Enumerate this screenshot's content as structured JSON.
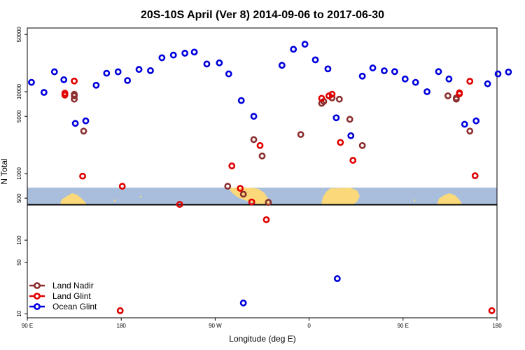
{
  "chart_data": {
    "type": "scatter",
    "title": "20S-10S April (Ver 8)   2014-09-06 to 2017-06-30",
    "xlabel": "Longitude (deg E)",
    "ylabel": "N Total",
    "x_ticks": [
      {
        "value": 90,
        "label": "90 E"
      },
      {
        "value": 180,
        "label": "180"
      },
      {
        "value": 270,
        "label": "90 W"
      },
      {
        "value": 360,
        "label": "0"
      },
      {
        "value": 450,
        "label": "90 E"
      },
      {
        "value": 540,
        "label": "180"
      }
    ],
    "xlim": [
      90,
      540
    ],
    "log_scale_y": true,
    "top_panel": {
      "ylim": [
        420,
        60000
      ],
      "y_ticks": [
        {
          "value": 500,
          "label": "500"
        },
        {
          "value": 1000,
          "label": "1000"
        },
        {
          "value": 5000,
          "label": "5000"
        },
        {
          "value": 10000,
          "label": "10000"
        },
        {
          "value": 50000,
          "label": "50000"
        }
      ]
    },
    "bottom_panel": {
      "ylim": [
        8.8,
        300
      ],
      "y_ticks": [
        {
          "value": 10,
          "label": "10"
        },
        {
          "value": 50,
          "label": "50"
        },
        {
          "value": 100,
          "label": "100"
        }
      ]
    },
    "series": [
      {
        "name": "Land Nadir",
        "color": "#8b2f2f",
        "top": [
          [
            135,
            8900
          ],
          [
            135,
            8100
          ],
          [
            135,
            9300
          ],
          [
            144,
            3300
          ],
          [
            352,
            3000
          ],
          [
            372,
            7200
          ],
          [
            374,
            7600
          ],
          [
            382,
            8400
          ],
          [
            389,
            8100
          ],
          [
            399,
            4600
          ],
          [
            411,
            2200
          ],
          [
            493,
            8900
          ],
          [
            501,
            8100
          ],
          [
            501,
            8400
          ],
          [
            514,
            3300
          ],
          [
            282,
            700
          ],
          [
            297,
            560
          ],
          [
            307,
            2600
          ],
          [
            315,
            1640
          ],
          [
            321,
            445
          ]
        ],
        "bottom": []
      },
      {
        "name": "Land Glint",
        "color": "#e00000",
        "top": [
          [
            126,
            9100
          ],
          [
            126,
            9600
          ],
          [
            135,
            13500
          ],
          [
            143,
            930
          ],
          [
            181,
            700
          ],
          [
            236,
            420
          ],
          [
            286,
            1240
          ],
          [
            294,
            660
          ],
          [
            305,
            450
          ],
          [
            313,
            2200
          ],
          [
            372,
            8300
          ],
          [
            379,
            8900
          ],
          [
            382,
            9300
          ],
          [
            390,
            2400
          ],
          [
            402,
            1450
          ],
          [
            504,
            9400
          ],
          [
            504,
            9700
          ],
          [
            514,
            13400
          ],
          [
            519,
            940
          ]
        ],
        "bottom": [
          [
            179,
            11
          ],
          [
            319,
            190
          ],
          [
            535,
            11
          ]
        ]
      },
      {
        "name": "Ocean Glint",
        "color": "#0000dd",
        "top": [
          [
            94,
            13000
          ],
          [
            106,
            9800
          ],
          [
            116,
            17500
          ],
          [
            125,
            14000
          ],
          [
            136,
            4100
          ],
          [
            146,
            4400
          ],
          [
            156,
            12000
          ],
          [
            166,
            16800
          ],
          [
            177,
            17500
          ],
          [
            186,
            13700
          ],
          [
            197,
            18700
          ],
          [
            208,
            18100
          ],
          [
            219,
            26000
          ],
          [
            230,
            28000
          ],
          [
            241,
            29500
          ],
          [
            250,
            30500
          ],
          [
            262,
            21800
          ],
          [
            274,
            22500
          ],
          [
            283,
            16500
          ],
          [
            295,
            7800
          ],
          [
            307,
            5000
          ],
          [
            334,
            21000
          ],
          [
            345,
            33000
          ],
          [
            356,
            38000
          ],
          [
            366,
            24500
          ],
          [
            378,
            19000
          ],
          [
            386,
            4800
          ],
          [
            400,
            2900
          ],
          [
            411,
            15500
          ],
          [
            421,
            19500
          ],
          [
            432,
            18000
          ],
          [
            442,
            17600
          ],
          [
            452,
            14300
          ],
          [
            462,
            13000
          ],
          [
            473,
            10000
          ],
          [
            484,
            17600
          ],
          [
            494,
            14300
          ],
          [
            509,
            4000
          ],
          [
            520,
            4400
          ],
          [
            531,
            12500
          ],
          [
            541,
            16500
          ],
          [
            551,
            17400
          ]
        ],
        "bottom": [
          [
            297,
            14
          ],
          [
            387,
            30
          ]
        ]
      }
    ],
    "legend_position": "bottom-left"
  }
}
